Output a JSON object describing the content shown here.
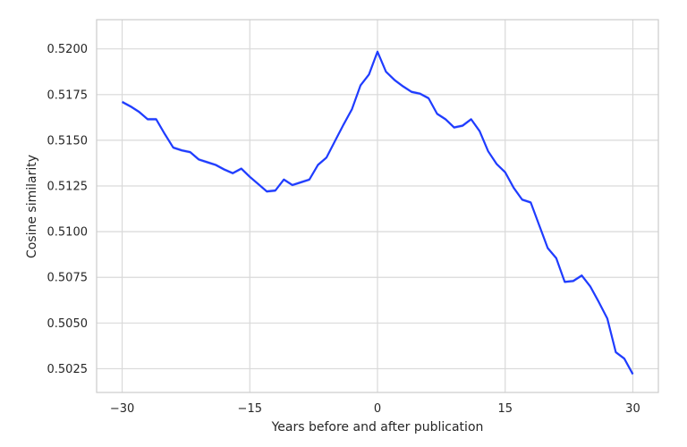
{
  "chart_data": {
    "type": "line",
    "title": "",
    "xlabel": "Years before and after publication",
    "ylabel": "Cosine similarity",
    "xlim": [
      -33,
      33
    ],
    "ylim": [
      0.5012,
      0.5216
    ],
    "x_ticks": [
      -30,
      -15,
      0,
      15,
      30
    ],
    "x_tick_labels": [
      "−30",
      "−15",
      "0",
      "15",
      "30"
    ],
    "y_ticks": [
      0.5025,
      0.505,
      0.5075,
      0.51,
      0.5125,
      0.515,
      0.5175,
      0.52
    ],
    "y_tick_labels": [
      "0.5025",
      "0.5050",
      "0.5075",
      "0.5100",
      "0.5125",
      "0.5150",
      "0.5175",
      "0.5200"
    ],
    "grid": true,
    "legend": "none",
    "colors": {
      "line": "#1f3cff",
      "band": "#9aa8f5",
      "grid": "#d9d9d9",
      "frame": "#cccccc"
    },
    "series": [
      {
        "x": [
          -30,
          -29,
          -28,
          -27,
          -26,
          -25,
          -24,
          -23,
          -22,
          -21,
          -20,
          -19,
          -18,
          -17,
          -16,
          -15,
          -14,
          -13,
          -12,
          -11,
          -10,
          -9,
          -8,
          -7,
          -6,
          -5,
          -4,
          -3,
          -2,
          -1,
          0,
          1,
          2,
          3,
          4,
          5,
          6,
          7,
          8,
          9,
          10,
          11,
          12,
          13,
          14,
          15,
          16,
          17,
          18,
          19,
          20,
          21,
          22,
          23,
          24,
          25,
          26,
          27,
          28,
          29,
          30
        ],
        "y": [
          0.5171,
          0.51685,
          0.51655,
          0.51615,
          0.51615,
          0.51535,
          0.5146,
          0.51445,
          0.51435,
          0.51395,
          0.5138,
          0.51365,
          0.5134,
          0.5132,
          0.51345,
          0.513,
          0.5126,
          0.5122,
          0.51225,
          0.51285,
          0.51255,
          0.5127,
          0.51285,
          0.51365,
          0.51405,
          0.51495,
          0.51585,
          0.5167,
          0.518,
          0.5186,
          0.51985,
          0.51875,
          0.5183,
          0.51795,
          0.51765,
          0.51755,
          0.5173,
          0.51645,
          0.51615,
          0.5157,
          0.5158,
          0.51615,
          0.5155,
          0.5144,
          0.5137,
          0.51325,
          0.5124,
          0.51175,
          0.5116,
          0.51035,
          0.5091,
          0.50855,
          0.50725,
          0.5073,
          0.5076,
          0.507,
          0.50615,
          0.50525,
          0.5034,
          0.50305,
          0.5022
        ],
        "ci": 8e-05
      }
    ]
  }
}
